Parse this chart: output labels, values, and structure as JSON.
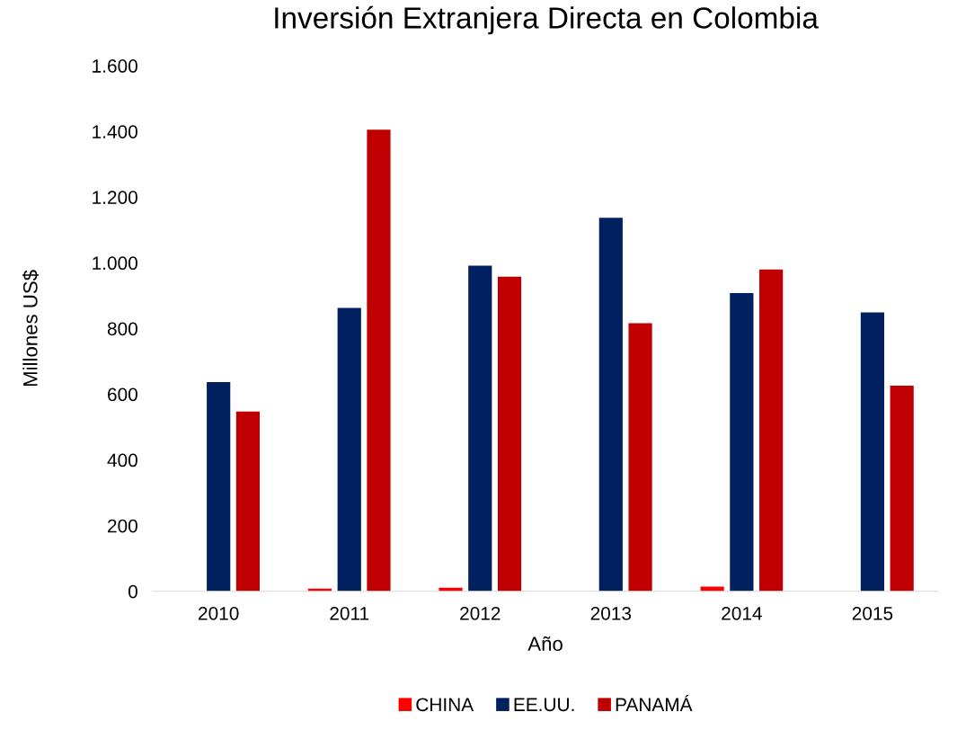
{
  "chart_data": {
    "type": "bar",
    "title": "Inversión Extranjera Directa en Colombia",
    "xlabel": "Año",
    "ylabel": "Millones US$",
    "categories": [
      "2010",
      "2011",
      "2012",
      "2013",
      "2014",
      "2015"
    ],
    "series": [
      {
        "name": "CHINA",
        "color": "#ff0000",
        "values": [
          0,
          8,
          11,
          null,
          14,
          null
        ]
      },
      {
        "name": "EE.UU.",
        "color": "#002060",
        "values": [
          637,
          863,
          991,
          1137,
          908,
          849
        ]
      },
      {
        "name": "PANAMÁ",
        "color": "#c00000",
        "values": [
          547,
          1405,
          958,
          816,
          980,
          626
        ]
      }
    ],
    "ylim": [
      0,
      1600
    ],
    "yticks": [
      0,
      200,
      400,
      600,
      800,
      {
        "value": 1000,
        "label": "1.000"
      },
      {
        "value": 1200,
        "label": "1.200"
      },
      {
        "value": 1400,
        "label": "1.400"
      },
      {
        "value": 1600,
        "label": "1.600"
      }
    ],
    "grid": false,
    "legend": "bottom"
  }
}
